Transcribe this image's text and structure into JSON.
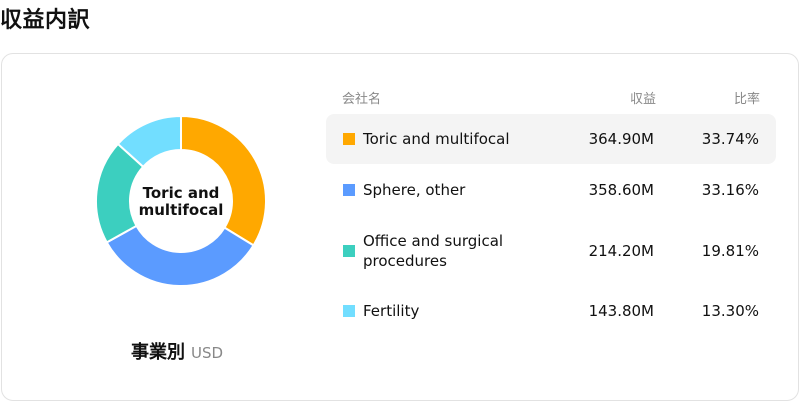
{
  "page_title": "収益内訳",
  "caption": {
    "main": "事業別",
    "unit": "USD"
  },
  "table_headers": {
    "name": "会社名",
    "value": "収益",
    "ratio": "比率"
  },
  "chart_data": {
    "type": "pie",
    "donut": true,
    "center_label": "Toric and\nmultifocal",
    "categories": [
      "Toric and multifocal",
      "Sphere, other",
      "Office and surgical procedures",
      "Fertility"
    ],
    "values": [
      364.9,
      358.6,
      214.2,
      143.8
    ],
    "value_labels": [
      "364.90M",
      "358.60M",
      "214.20M",
      "143.80M"
    ],
    "ratios": [
      "33.74%",
      "33.16%",
      "19.81%",
      "13.30%"
    ],
    "colors": [
      "#FFA800",
      "#5B9BFF",
      "#3CCFBF",
      "#72DEFF"
    ],
    "highlighted_index": 0
  },
  "rows": [
    {
      "name": "Toric and multifocal",
      "value": "364.90M",
      "ratio": "33.74%",
      "color": "#FFA800"
    },
    {
      "name": "Sphere, other",
      "value": "358.60M",
      "ratio": "33.16%",
      "color": "#5B9BFF"
    },
    {
      "name": "Office and surgical procedures",
      "value": "214.20M",
      "ratio": "19.81%",
      "color": "#3CCFBF"
    },
    {
      "name": "Fertility",
      "value": "143.80M",
      "ratio": "13.30%",
      "color": "#72DEFF"
    }
  ]
}
